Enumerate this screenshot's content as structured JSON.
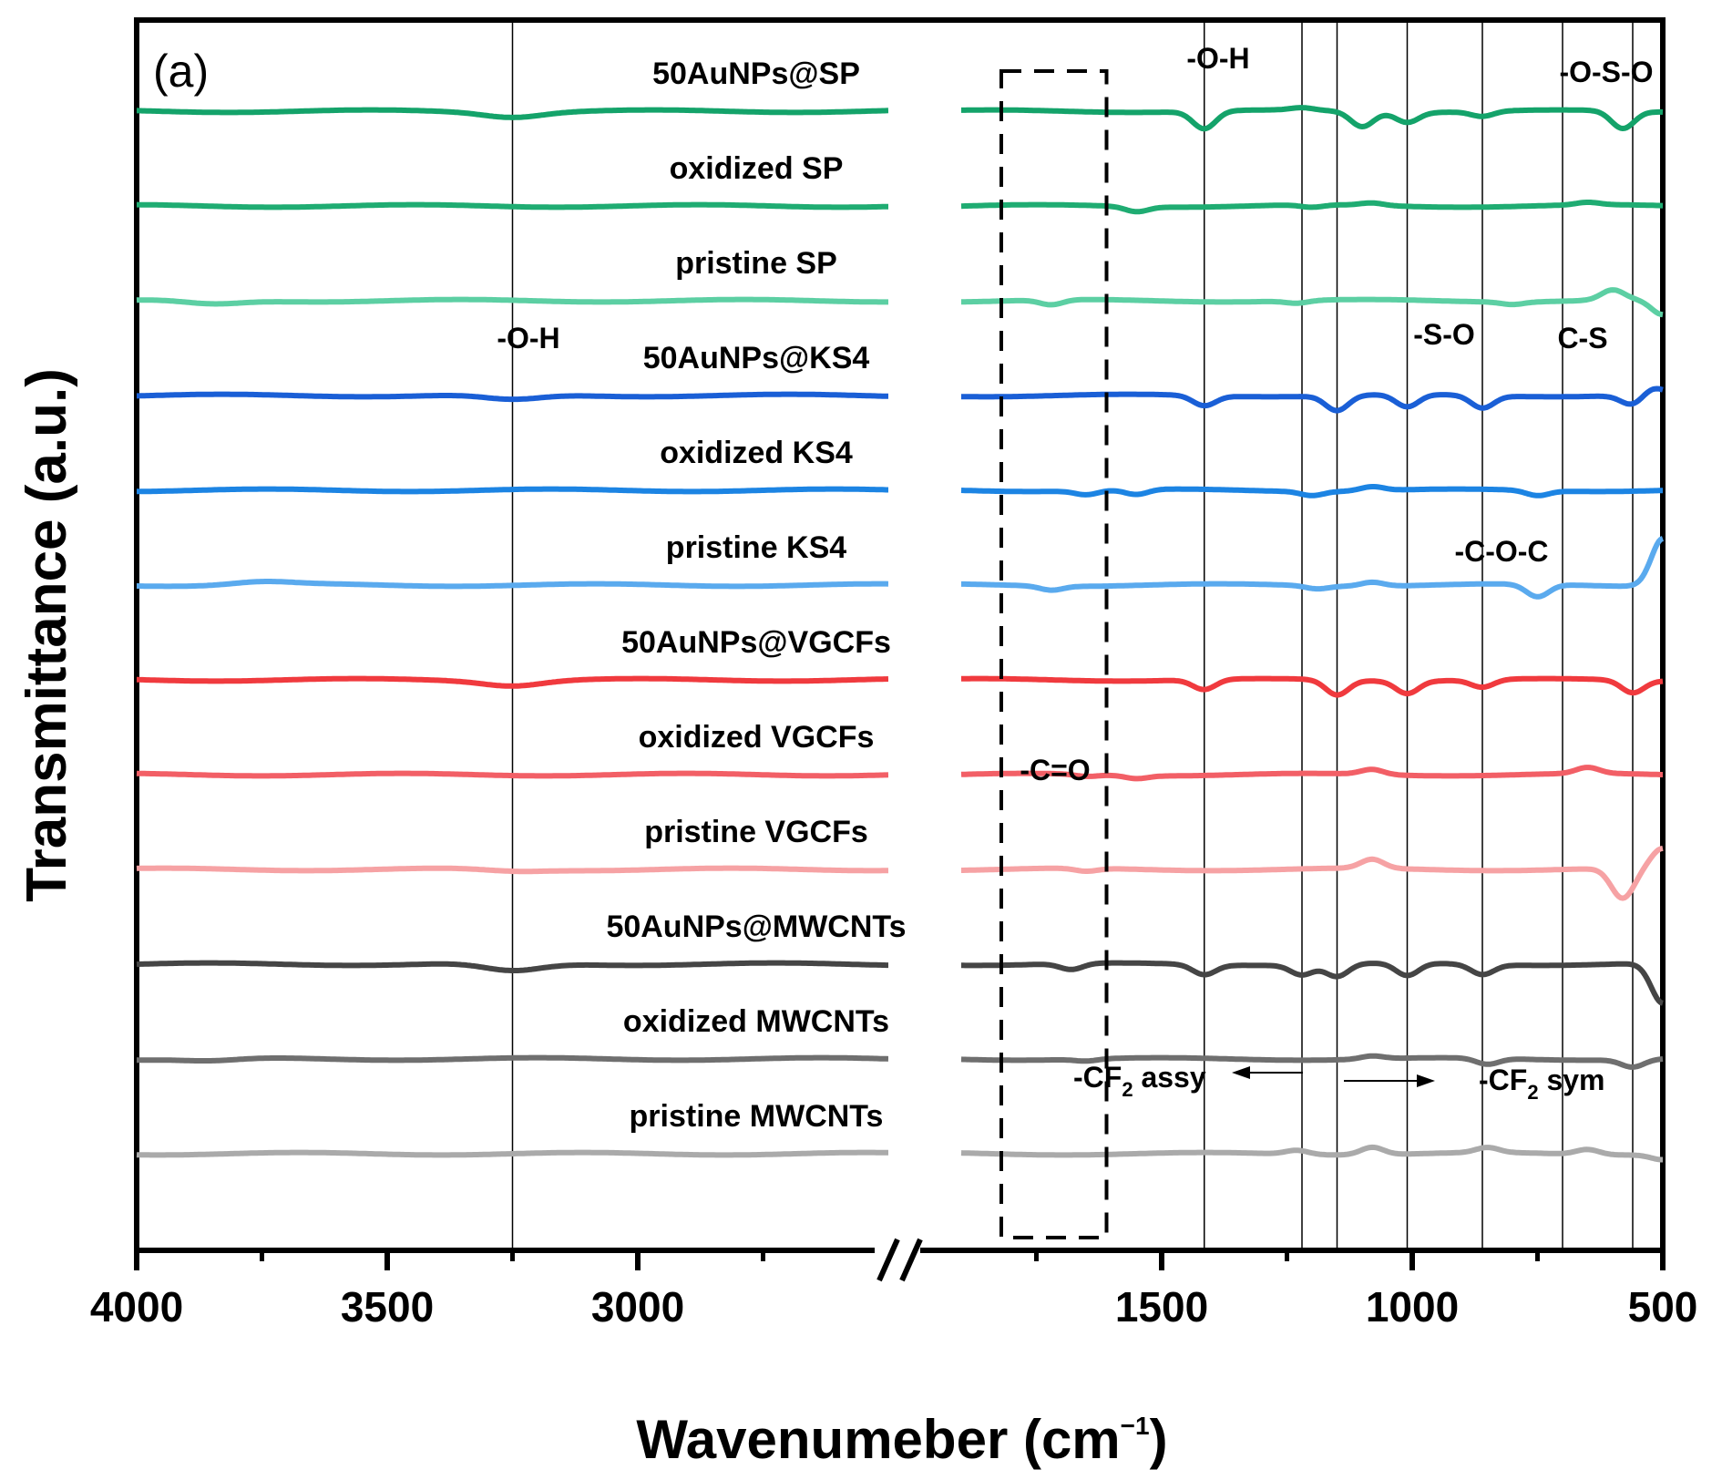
{
  "chart_data": {
    "type": "line",
    "panel_label": "(a)",
    "title": "",
    "xlabel_main": "Wavenumeber (cm",
    "xlabel_sup": "−1",
    "xlabel_close": ")",
    "ylabel": "Transmittance (a.u.)",
    "x_axis": {
      "reversed": true,
      "segments": [
        [
          4000,
          2500
        ],
        [
          1900,
          500
        ]
      ],
      "break_between": [
        2500,
        1900
      ],
      "ticks": [
        4000,
        3500,
        3000,
        1500,
        1000,
        500
      ],
      "tick_labels": [
        "4000",
        "3500",
        "3000",
        "1500",
        "1000",
        "500"
      ],
      "minor_ticks": [
        3750,
        3250,
        2750,
        1750,
        1250,
        750
      ]
    },
    "y_axis": {
      "unit": "a.u. (stacked, offset)",
      "ticks_shown": false
    },
    "reference_lines": [
      3250,
      1415,
      1220,
      1150,
      1010,
      860,
      700,
      560
    ],
    "dashed_box": {
      "x_range": [
        1820,
        1610
      ],
      "label": "-C=O"
    },
    "annotations": [
      {
        "text": "-O-H",
        "x": 1400,
        "row": "50AuNPs@SP"
      },
      {
        "text": "-O-S-O",
        "x": 560,
        "row": "50AuNPs@SP"
      },
      {
        "text": "-O-H",
        "x": 3250,
        "row": "50AuNPs@KS4"
      },
      {
        "text": "-S-O",
        "x": 1010,
        "row": "50AuNPs@KS4"
      },
      {
        "text": "C-S",
        "x": 700,
        "row": "50AuNPs@KS4"
      },
      {
        "text": "-C-O-C",
        "x": 780,
        "row": "pristine KS4"
      },
      {
        "text": "-CF",
        "sub": "2",
        "suffix": " assy",
        "x": 1400,
        "row": "50AuNPs@MWCNTs",
        "arrow": "left"
      },
      {
        "text": "-CF",
        "sub": "2",
        "suffix": " sym",
        "x": 800,
        "row": "50AuNPs@MWCNTs",
        "arrow": "right"
      }
    ],
    "series": [
      {
        "name": "50AuNPs@SP",
        "color": "#14a36a",
        "offset": 11,
        "features": [
          [
            3250,
            -0.1
          ],
          [
            1415,
            -0.35
          ],
          [
            1220,
            0.05
          ],
          [
            1100,
            -0.3
          ],
          [
            1010,
            -0.2
          ],
          [
            860,
            -0.1
          ],
          [
            580,
            -0.35
          ]
        ]
      },
      {
        "name": "oxidized SP",
        "color": "#1fac72",
        "offset": 10,
        "features": [
          [
            1550,
            -0.1
          ],
          [
            1200,
            -0.05
          ],
          [
            1080,
            0.05
          ],
          [
            650,
            0.05
          ]
        ]
      },
      {
        "name": "pristine SP",
        "color": "#5ccfa3",
        "offset": 9,
        "features": [
          [
            3850,
            -0.08
          ],
          [
            1720,
            -0.1
          ],
          [
            1230,
            -0.05
          ],
          [
            800,
            -0.05
          ],
          [
            600,
            0.2
          ],
          [
            500,
            -0.3
          ]
        ]
      },
      {
        "name": "50AuNPs@KS4",
        "color": "#1a5fd6",
        "offset": 8,
        "features": [
          [
            3250,
            -0.1
          ],
          [
            1415,
            -0.2
          ],
          [
            1150,
            -0.3
          ],
          [
            1010,
            -0.25
          ],
          [
            860,
            -0.25
          ],
          [
            560,
            -0.2
          ],
          [
            520,
            0.15
          ]
        ]
      },
      {
        "name": "oxidized KS4",
        "color": "#1c84e3",
        "offset": 7,
        "features": [
          [
            1650,
            -0.08
          ],
          [
            1550,
            -0.1
          ],
          [
            1200,
            -0.08
          ],
          [
            1080,
            0.08
          ],
          [
            750,
            -0.1
          ]
        ]
      },
      {
        "name": "pristine KS4",
        "color": "#5aaaee",
        "offset": 6,
        "features": [
          [
            3750,
            0.06
          ],
          [
            1720,
            -0.08
          ],
          [
            1190,
            -0.06
          ],
          [
            1080,
            0.08
          ],
          [
            750,
            -0.25
          ],
          [
            500,
            0.95
          ]
        ]
      },
      {
        "name": "50AuNPs@VGCFs",
        "color": "#f03a3e",
        "offset": 5,
        "features": [
          [
            3250,
            -0.1
          ],
          [
            1415,
            -0.2
          ],
          [
            1150,
            -0.3
          ],
          [
            1010,
            -0.25
          ],
          [
            860,
            -0.15
          ],
          [
            560,
            -0.25
          ]
        ]
      },
      {
        "name": "oxidized VGCFs",
        "color": "#f25f66",
        "offset": 4,
        "features": [
          [
            1650,
            -0.04
          ],
          [
            1550,
            -0.06
          ],
          [
            1080,
            0.1
          ],
          [
            650,
            0.12
          ]
        ]
      },
      {
        "name": "pristine VGCFs",
        "color": "#f6a2a4",
        "offset": 3,
        "features": [
          [
            3250,
            -0.04
          ],
          [
            1650,
            -0.06
          ],
          [
            1080,
            0.18
          ],
          [
            580,
            -0.6
          ],
          [
            500,
            0.4
          ]
        ]
      },
      {
        "name": "50AuNPs@MWCNTs",
        "color": "#454545",
        "offset": 2,
        "features": [
          [
            3250,
            -0.15
          ],
          [
            1680,
            -0.12
          ],
          [
            1415,
            -0.2
          ],
          [
            1220,
            -0.2
          ],
          [
            1150,
            -0.25
          ],
          [
            1010,
            -0.25
          ],
          [
            860,
            -0.2
          ],
          [
            500,
            -0.8
          ]
        ]
      },
      {
        "name": "oxidized MWCNTs",
        "color": "#6f6f6f",
        "offset": 1,
        "features": [
          [
            3850,
            -0.05
          ],
          [
            1650,
            -0.04
          ],
          [
            1080,
            0.06
          ],
          [
            850,
            -0.12
          ],
          [
            560,
            -0.15
          ]
        ]
      },
      {
        "name": "pristine MWCNTs",
        "color": "#aaaaaa",
        "offset": 0,
        "features": [
          [
            1230,
            0.08
          ],
          [
            1080,
            0.15
          ],
          [
            850,
            0.1
          ],
          [
            650,
            0.1
          ],
          [
            500,
            -0.1
          ]
        ]
      }
    ]
  }
}
